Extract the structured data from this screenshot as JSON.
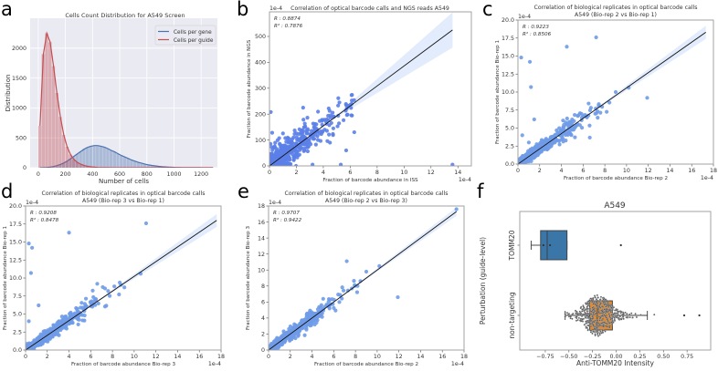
{
  "chart_data": [
    {
      "id": "a",
      "panel_label": "a",
      "type": "bar",
      "title": [
        "Cells Count Distribution for A549 Screen"
      ],
      "xlabel": "Number of cells",
      "ylabel": "Distribution",
      "xlim": [
        -60,
        1320
      ],
      "ylim": [
        0,
        2500
      ],
      "grid": true,
      "xticks": [
        0,
        200,
        400,
        600,
        800,
        1000,
        1200
      ],
      "xtick_labels": [
        "0",
        "200",
        "400",
        "600",
        "800",
        "1000",
        "1200"
      ],
      "yticks": [
        0,
        500,
        1000,
        1500,
        2000
      ],
      "ytick_labels": [
        "0",
        "500",
        "1000",
        "1500",
        "2000"
      ],
      "legend_position": "top-right",
      "bin_width": 25,
      "series": [
        {
          "name": "Cells per gene",
          "color": "#4c72b0",
          "values": [
            0,
            2,
            5,
            10,
            20,
            35,
            55,
            80,
            110,
            150,
            190,
            230,
            270,
            310,
            340,
            360,
            370,
            370,
            360,
            345,
            320,
            290,
            265,
            235,
            205,
            180,
            155,
            130,
            110,
            90,
            75,
            60,
            48,
            38,
            30,
            23,
            17,
            13,
            10,
            7,
            5,
            4,
            3,
            2,
            2,
            1,
            1,
            1,
            0,
            0,
            0,
            0
          ]
        },
        {
          "name": "Cells per guide",
          "color": "#c44e52",
          "values": [
            700,
            1900,
            2250,
            2100,
            1700,
            1250,
            850,
            550,
            350,
            220,
            140,
            90,
            60,
            40,
            25,
            15,
            10,
            5,
            3,
            2,
            1,
            0,
            0,
            0,
            0,
            0,
            0,
            0,
            0,
            0,
            0,
            0,
            0,
            0,
            0,
            0,
            0,
            0,
            0,
            0,
            0,
            0,
            0,
            0,
            0,
            0,
            0,
            0,
            0,
            0,
            0,
            0
          ]
        }
      ]
    },
    {
      "id": "b",
      "panel_label": "b",
      "type": "scatter",
      "title": [
        "Correlation of optical barcode calls and NGS reads A549"
      ],
      "xlabel": "Fraction of barcode abundance in ISS",
      "ylabel": "Fraction of barcode abundance in NGS",
      "x_offset_text": "1e-4",
      "y_offset_text": "1e-4",
      "stats": [
        "R : 0.8874",
        "R² : 0.7876"
      ],
      "xlim": [
        0,
        15
      ],
      "ylim": [
        0,
        595
      ],
      "xticks": [
        0,
        2,
        4,
        6,
        8,
        10,
        12,
        14
      ],
      "xtick_labels": [
        "0",
        "2",
        "4",
        "6",
        "8",
        "10",
        "12",
        "14"
      ],
      "yticks": [
        0,
        100,
        200,
        300,
        400,
        500
      ],
      "ytick_labels": [
        "0",
        "100",
        "200",
        "300",
        "400",
        "500"
      ],
      "regression_line": [
        [
          0,
          0
        ],
        [
          13.6,
          525
        ]
      ],
      "ci_spread": 0.13,
      "bulk": {
        "n": 520,
        "x_mean": 1.9,
        "x_max": 6.3,
        "slope": 38,
        "noise": 30,
        "zero_y_points": 30
      },
      "outliers": [
        [
          0.1,
          208
        ],
        [
          13.6,
          5
        ],
        [
          5.7,
          60
        ],
        [
          6.3,
          130
        ],
        [
          5.1,
          233
        ],
        [
          4.4,
          222
        ],
        [
          2.5,
          225
        ],
        [
          0.2,
          128
        ],
        [
          5.3,
          5
        ],
        [
          3.2,
          5
        ]
      ],
      "point_color": "#5b7fe8"
    },
    {
      "id": "c",
      "panel_label": "c",
      "type": "scatter",
      "title": [
        "Correlation of biological replicates in optical barcode calls",
        "A549 (Bio-rep 2 vs Bio-rep 1)"
      ],
      "xlabel": "Fraction of barcode abundance Bio-rep 2",
      "ylabel": "Fraction of barcode abundance Bio-rep 1",
      "x_offset_text": "1e-4",
      "y_offset_text": "1e-4",
      "stats": [
        "R : 0.9223",
        "R² : 0.8506"
      ],
      "xlim": [
        0,
        18
      ],
      "ylim": [
        0,
        20
      ],
      "xticks": [
        0,
        2,
        4,
        6,
        8,
        10,
        12,
        14,
        16,
        18
      ],
      "xtick_labels": [
        "0",
        "2",
        "4",
        "6",
        "8",
        "10",
        "12",
        "14",
        "16",
        "18"
      ],
      "yticks": [
        0,
        2.5,
        5,
        7.5,
        10,
        12.5,
        15,
        17.5,
        20
      ],
      "ytick_labels": [
        "0.0",
        "2.5",
        "5.0",
        "7.5",
        "10.0",
        "12.5",
        "15.0",
        "17.5",
        "20.0"
      ],
      "regression_line": [
        [
          0,
          0
        ],
        [
          17.3,
          18.3
        ]
      ],
      "ci_spread": 0.05,
      "bulk": {
        "n": 650,
        "x_mean": 2.0,
        "x_max": 8.5,
        "slope": 1.05,
        "noise": 0.35,
        "zero_y_points": 0
      },
      "outliers": [
        [
          0.3,
          14.8
        ],
        [
          1.1,
          14.2
        ],
        [
          1.2,
          10.7
        ],
        [
          1.5,
          6.2
        ],
        [
          4.5,
          16.3
        ],
        [
          7.2,
          17.6
        ],
        [
          11.9,
          9.2
        ],
        [
          10.2,
          10.6
        ],
        [
          9.0,
          10.0
        ],
        [
          0.4,
          4.0
        ],
        [
          1.0,
          3.0
        ]
      ],
      "point_color": "#6f9be8"
    },
    {
      "id": "d",
      "panel_label": "d",
      "type": "scatter",
      "title": [
        "Correlation of biological replicates in optical barcode calls",
        "A549 (Bio-rep 3 vs Bio-rep 1)"
      ],
      "xlabel": "Fraction of barcode abundance Bio-rep 3",
      "ylabel": "Fraction of barcode abundance Bio-rep 1",
      "x_offset_text": "1e-4",
      "y_offset_text": "1e-4",
      "stats": [
        "R : 0.9208",
        "R² : 0.8478"
      ],
      "xlim": [
        0,
        18
      ],
      "ylim": [
        0,
        20
      ],
      "xticks": [
        0,
        2,
        4,
        6,
        8,
        10,
        12,
        14,
        16,
        18
      ],
      "xtick_labels": [
        "0",
        "2",
        "4",
        "6",
        "8",
        "10",
        "12",
        "14",
        "16",
        "18"
      ],
      "yticks": [
        0,
        2.5,
        5,
        7.5,
        10,
        12.5,
        15,
        17.5,
        20
      ],
      "ytick_labels": [
        "0.0",
        "2.5",
        "5.0",
        "7.5",
        "10.0",
        "12.5",
        "15.0",
        "17.5",
        "20.0"
      ],
      "regression_line": [
        [
          0,
          0
        ],
        [
          17.6,
          18.0
        ]
      ],
      "ci_spread": 0.05,
      "bulk": {
        "n": 650,
        "x_mean": 2.0,
        "x_max": 8.8,
        "slope": 1.03,
        "noise": 0.35,
        "zero_y_points": 0
      },
      "outliers": [
        [
          0.3,
          14.8
        ],
        [
          0.6,
          14.2
        ],
        [
          0.5,
          10.7
        ],
        [
          1.2,
          6.2
        ],
        [
          4.0,
          16.3
        ],
        [
          11.1,
          17.6
        ],
        [
          10.6,
          10.6
        ],
        [
          9.1,
          8.7
        ],
        [
          0.3,
          4.0
        ],
        [
          6.6,
          9.2
        ]
      ],
      "point_color": "#6f9be8"
    },
    {
      "id": "e",
      "panel_label": "e",
      "type": "scatter",
      "title": [
        "Correlation of biological replicates in optical barcode calls",
        "A549 (Bio-rep 2 vs Bio-rep 3)"
      ],
      "xlabel": "Fraction of barcode abundance Bio-rep 2",
      "ylabel": "Fraction of barcode abundance Bio-rep 3",
      "x_offset_text": "1e-4",
      "y_offset_text": "1e-4",
      "stats": [
        "R : 0.9707",
        "R² : 0.9422"
      ],
      "xlim": [
        0,
        18
      ],
      "ylim": [
        0,
        18
      ],
      "xticks": [
        0,
        2,
        4,
        6,
        8,
        10,
        12,
        14,
        16,
        18
      ],
      "xtick_labels": [
        "0",
        "2",
        "4",
        "6",
        "8",
        "10",
        "12",
        "14",
        "16",
        "18"
      ],
      "yticks": [
        0,
        2,
        4,
        6,
        8,
        10,
        12,
        14,
        16,
        18
      ],
      "ytick_labels": [
        "0",
        "2",
        "4",
        "6",
        "8",
        "10",
        "12",
        "14",
        "16",
        "18"
      ],
      "regression_line": [
        [
          0,
          0
        ],
        [
          17.3,
          17.3
        ]
      ],
      "ci_spread": 0.03,
      "bulk": {
        "n": 650,
        "x_mean": 2.0,
        "x_max": 8.5,
        "slope": 1.0,
        "noise": 0.3,
        "zero_y_points": 0
      },
      "outliers": [
        [
          17.3,
          17.6
        ],
        [
          7.2,
          11.1
        ],
        [
          10.2,
          10.5
        ],
        [
          11.9,
          6.6
        ],
        [
          9.0,
          9.8
        ]
      ],
      "point_color": "#6f9be8"
    },
    {
      "id": "f",
      "panel_label": "f",
      "type": "box",
      "title": [
        "A549"
      ],
      "xlabel": "Anti-TOMM20 Intensity",
      "ylabel": "Perturbation (guide-level)",
      "xlim": [
        -1.02,
        1.0
      ],
      "xticks": [
        -0.75,
        -0.5,
        -0.25,
        0,
        0.25,
        0.5,
        0.75
      ],
      "xtick_labels": [
        "−0.75",
        "−0.50",
        "−0.25",
        "0.00",
        "0.25",
        "0.50",
        "0.75"
      ],
      "categories": [
        "TOMM20",
        "non-targeting"
      ],
      "boxes": [
        {
          "name": "TOMM20",
          "color": "#3a77a8",
          "whisker_low": -0.9,
          "q1": -0.8,
          "median": -0.73,
          "q3": -0.52,
          "whisker_high": -0.52,
          "points": [
            -0.77,
            -0.7
          ],
          "outliers": [
            0.05
          ],
          "swarm_n": 0
        },
        {
          "name": "non-targeting",
          "color": "#e1892e",
          "whisker_low": -0.54,
          "q1": -0.28,
          "median": -0.2,
          "q3": -0.04,
          "whisker_high": 0.33,
          "points": [],
          "outliers": [
            0.72,
            0.88
          ],
          "swarm_n": 520
        }
      ]
    }
  ]
}
